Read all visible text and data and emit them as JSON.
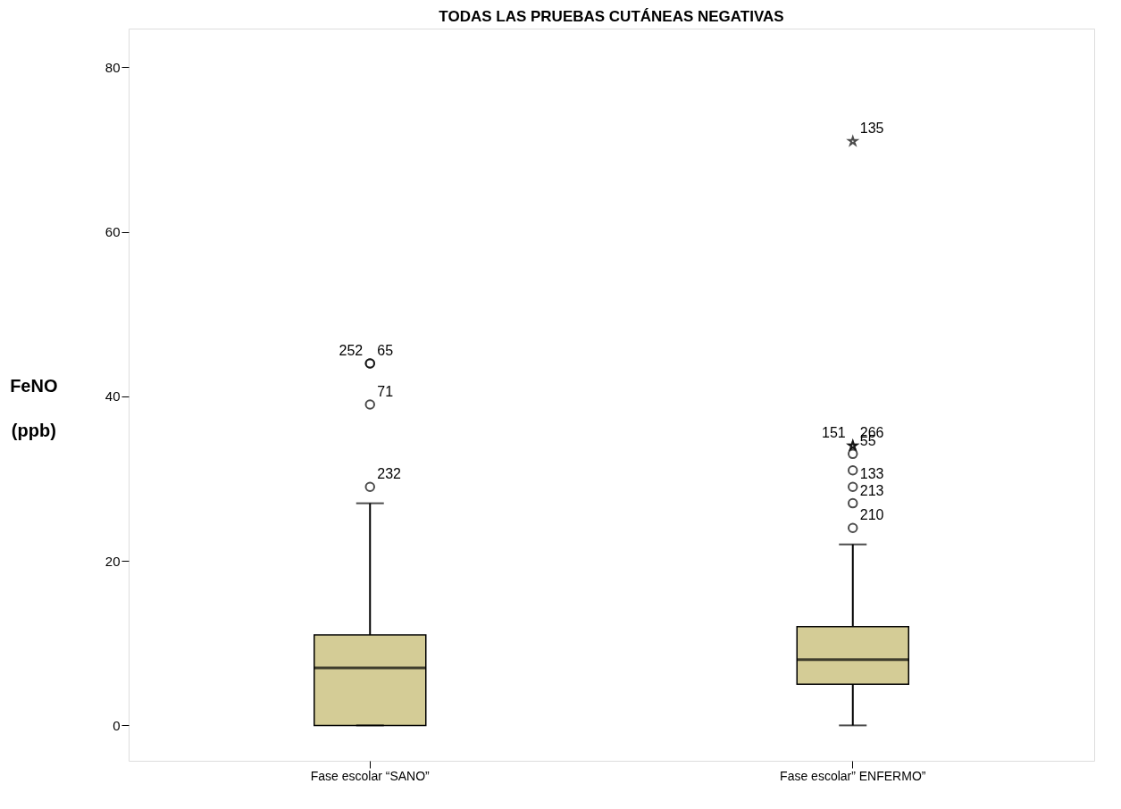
{
  "chart_data": {
    "type": "box",
    "title": "TODAS LAS PRUEBAS CUTÁNEAS NEGATIVAS",
    "ylabel": "FeNO (ppb)",
    "categories": [
      "Fase escolar “SANO”",
      "Fase escolar” ENFERMO”"
    ],
    "series": [
      {
        "type": "box",
        "color": "#d4cc96",
        "boxes": [
          {
            "low": 0,
            "q1": 0,
            "median": 7,
            "q3": 11,
            "high": 27
          },
          {
            "low": 0,
            "q1": 5,
            "median": 8,
            "q3": 12,
            "high": 22
          }
        ]
      },
      {
        "type": "scatter",
        "marker": "circle",
        "color": "#000000",
        "x": [
          "Fase escolar “SANO”",
          "Fase escolar “SANO”",
          "Fase escolar “SANO”",
          "Fase escolar “SANO”",
          "Fase escolar” ENFERMO”",
          "Fase escolar” ENFERMO”",
          "Fase escolar” ENFERMO”",
          "Fase escolar” ENFERMO”",
          "Fase escolar” ENFERMO”"
        ],
        "values": [
          29,
          39,
          44,
          44,
          24,
          27,
          29,
          31,
          33
        ]
      },
      {
        "type": "scatter",
        "marker": "star",
        "color": "#000000",
        "x": [
          "Fase escolar” ENFERMO”",
          "Fase escolar” ENFERMO”",
          "Fase escolar” ENFERMO”"
        ],
        "values": [
          34,
          34,
          71
        ]
      }
    ],
    "ylim": [
      -4.3,
      84.7
    ],
    "yticks": [
      0,
      20,
      40,
      60,
      80
    ],
    "grid": false,
    "annotations": [
      {
        "text": "252",
        "x": "Fase escolar “SANO”",
        "y": 44
      },
      {
        "text": "65",
        "x": "Fase escolar “SANO”",
        "y": 44
      },
      {
        "text": "71",
        "x": "Fase escolar “SANO”",
        "y": 39
      },
      {
        "text": "232",
        "x": "Fase escolar “SANO”",
        "y": 29
      },
      {
        "text": "135",
        "x": "Fase escolar” ENFERMO”",
        "y": 71
      },
      {
        "text": "151",
        "x": "Fase escolar” ENFERMO”",
        "y": 34
      },
      {
        "text": "266",
        "x": "Fase escolar” ENFERMO”",
        "y": 34
      },
      {
        "text": "55",
        "x": "Fase escolar” ENFERMO”",
        "y": 33
      },
      {
        "text": "133",
        "x": "Fase escolar” ENFERMO”",
        "y": 29
      },
      {
        "text": "213",
        "x": "Fase escolar” ENFERMO”",
        "y": 27
      },
      {
        "text": "210",
        "x": "Fase escolar” ENFERMO”",
        "y": 24
      }
    ]
  }
}
